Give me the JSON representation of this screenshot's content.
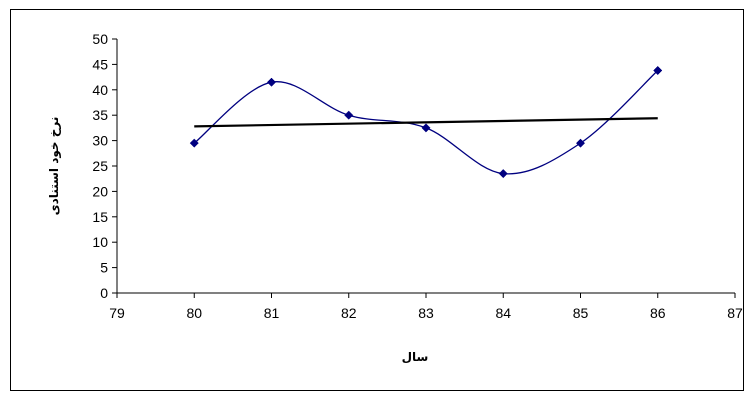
{
  "chart_data": {
    "type": "line",
    "xlabel": "سال",
    "ylabel": "نرخ خود استنادی",
    "xlim": [
      79,
      87
    ],
    "ylim": [
      0,
      50
    ],
    "x_ticks": [
      79,
      80,
      81,
      82,
      83,
      84,
      85,
      86,
      87
    ],
    "y_ticks": [
      0,
      5,
      10,
      15,
      20,
      25,
      30,
      35,
      40,
      45,
      50
    ],
    "grid": false,
    "legend": "none",
    "series": [
      {
        "kind": "smoothed-line-with-markers",
        "marker": "diamond",
        "color": "#000080",
        "x": [
          80,
          81,
          82,
          83,
          84,
          85,
          86
        ],
        "y": [
          29.5,
          41.5,
          35.0,
          32.5,
          23.5,
          29.5,
          43.8
        ]
      },
      {
        "kind": "linear-trendline",
        "color": "#000000",
        "x": [
          80,
          86
        ],
        "y": [
          32.8,
          34.4
        ]
      }
    ]
  }
}
